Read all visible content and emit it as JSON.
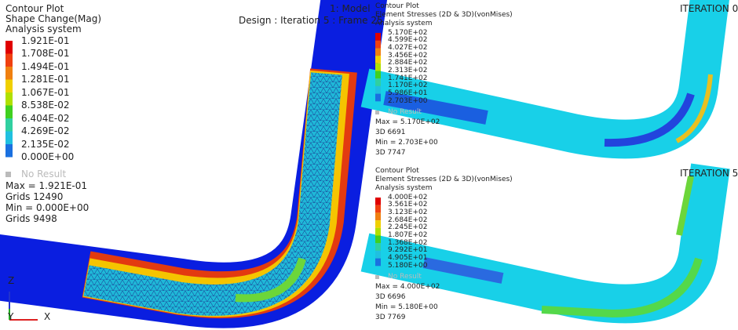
{
  "left": {
    "title": "Contour Plot",
    "subtitle": "Shape Change(Mag)",
    "system": "Analysis system",
    "model": "1: Model",
    "design": "Design : Iteration 5 : Frame 25",
    "legend": [
      "1.921E-01",
      "1.708E-01",
      "1.494E-01",
      "1.281E-01",
      "1.067E-01",
      "8.538E-02",
      "6.404E-02",
      "4.269E-02",
      "2.135E-02",
      "0.000E+00"
    ],
    "no_result": "No Result",
    "stats": [
      "Max = 1.921E-01",
      "Grids 12490",
      "Min = 0.000E+00",
      "Grids 9498"
    ],
    "axes": {
      "z": "Z",
      "y": "Y",
      "x": "X"
    }
  },
  "top_right": {
    "title": "Contour Plot",
    "subtitle": "Element Stresses (2D & 3D)(vonMises)",
    "system": "Analysis system",
    "label": "ITERATION 0",
    "legend": [
      "5.170E+02",
      "4.599E+02",
      "4.027E+02",
      "3.456E+02",
      "2.884E+02",
      "2.313E+02",
      "1.741E+02",
      "1.170E+02",
      "5.986E+01",
      "2.703E+00"
    ],
    "no_result": "No Result",
    "stats": [
      "Max = 5.170E+02",
      "3D 6691",
      "Min = 2.703E+00",
      "3D 7747"
    ]
  },
  "bottom_right": {
    "title": "Contour Plot",
    "subtitle": "Element Stresses (2D & 3D)(vonMises)",
    "system": "Analysis system",
    "label": "ITERATION 5",
    "legend": [
      "4.000E+02",
      "3.561E+02",
      "3.123E+02",
      "2.684E+02",
      "2.245E+02",
      "1.807E+02",
      "1.368E+02",
      "9.292E+01",
      "4.905E+01",
      "5.180E+00"
    ],
    "no_result": "No Result",
    "stats": [
      "Max = 4.000E+02",
      "3D 6696",
      "Min = 5.180E+00",
      "3D 7769"
    ]
  }
}
